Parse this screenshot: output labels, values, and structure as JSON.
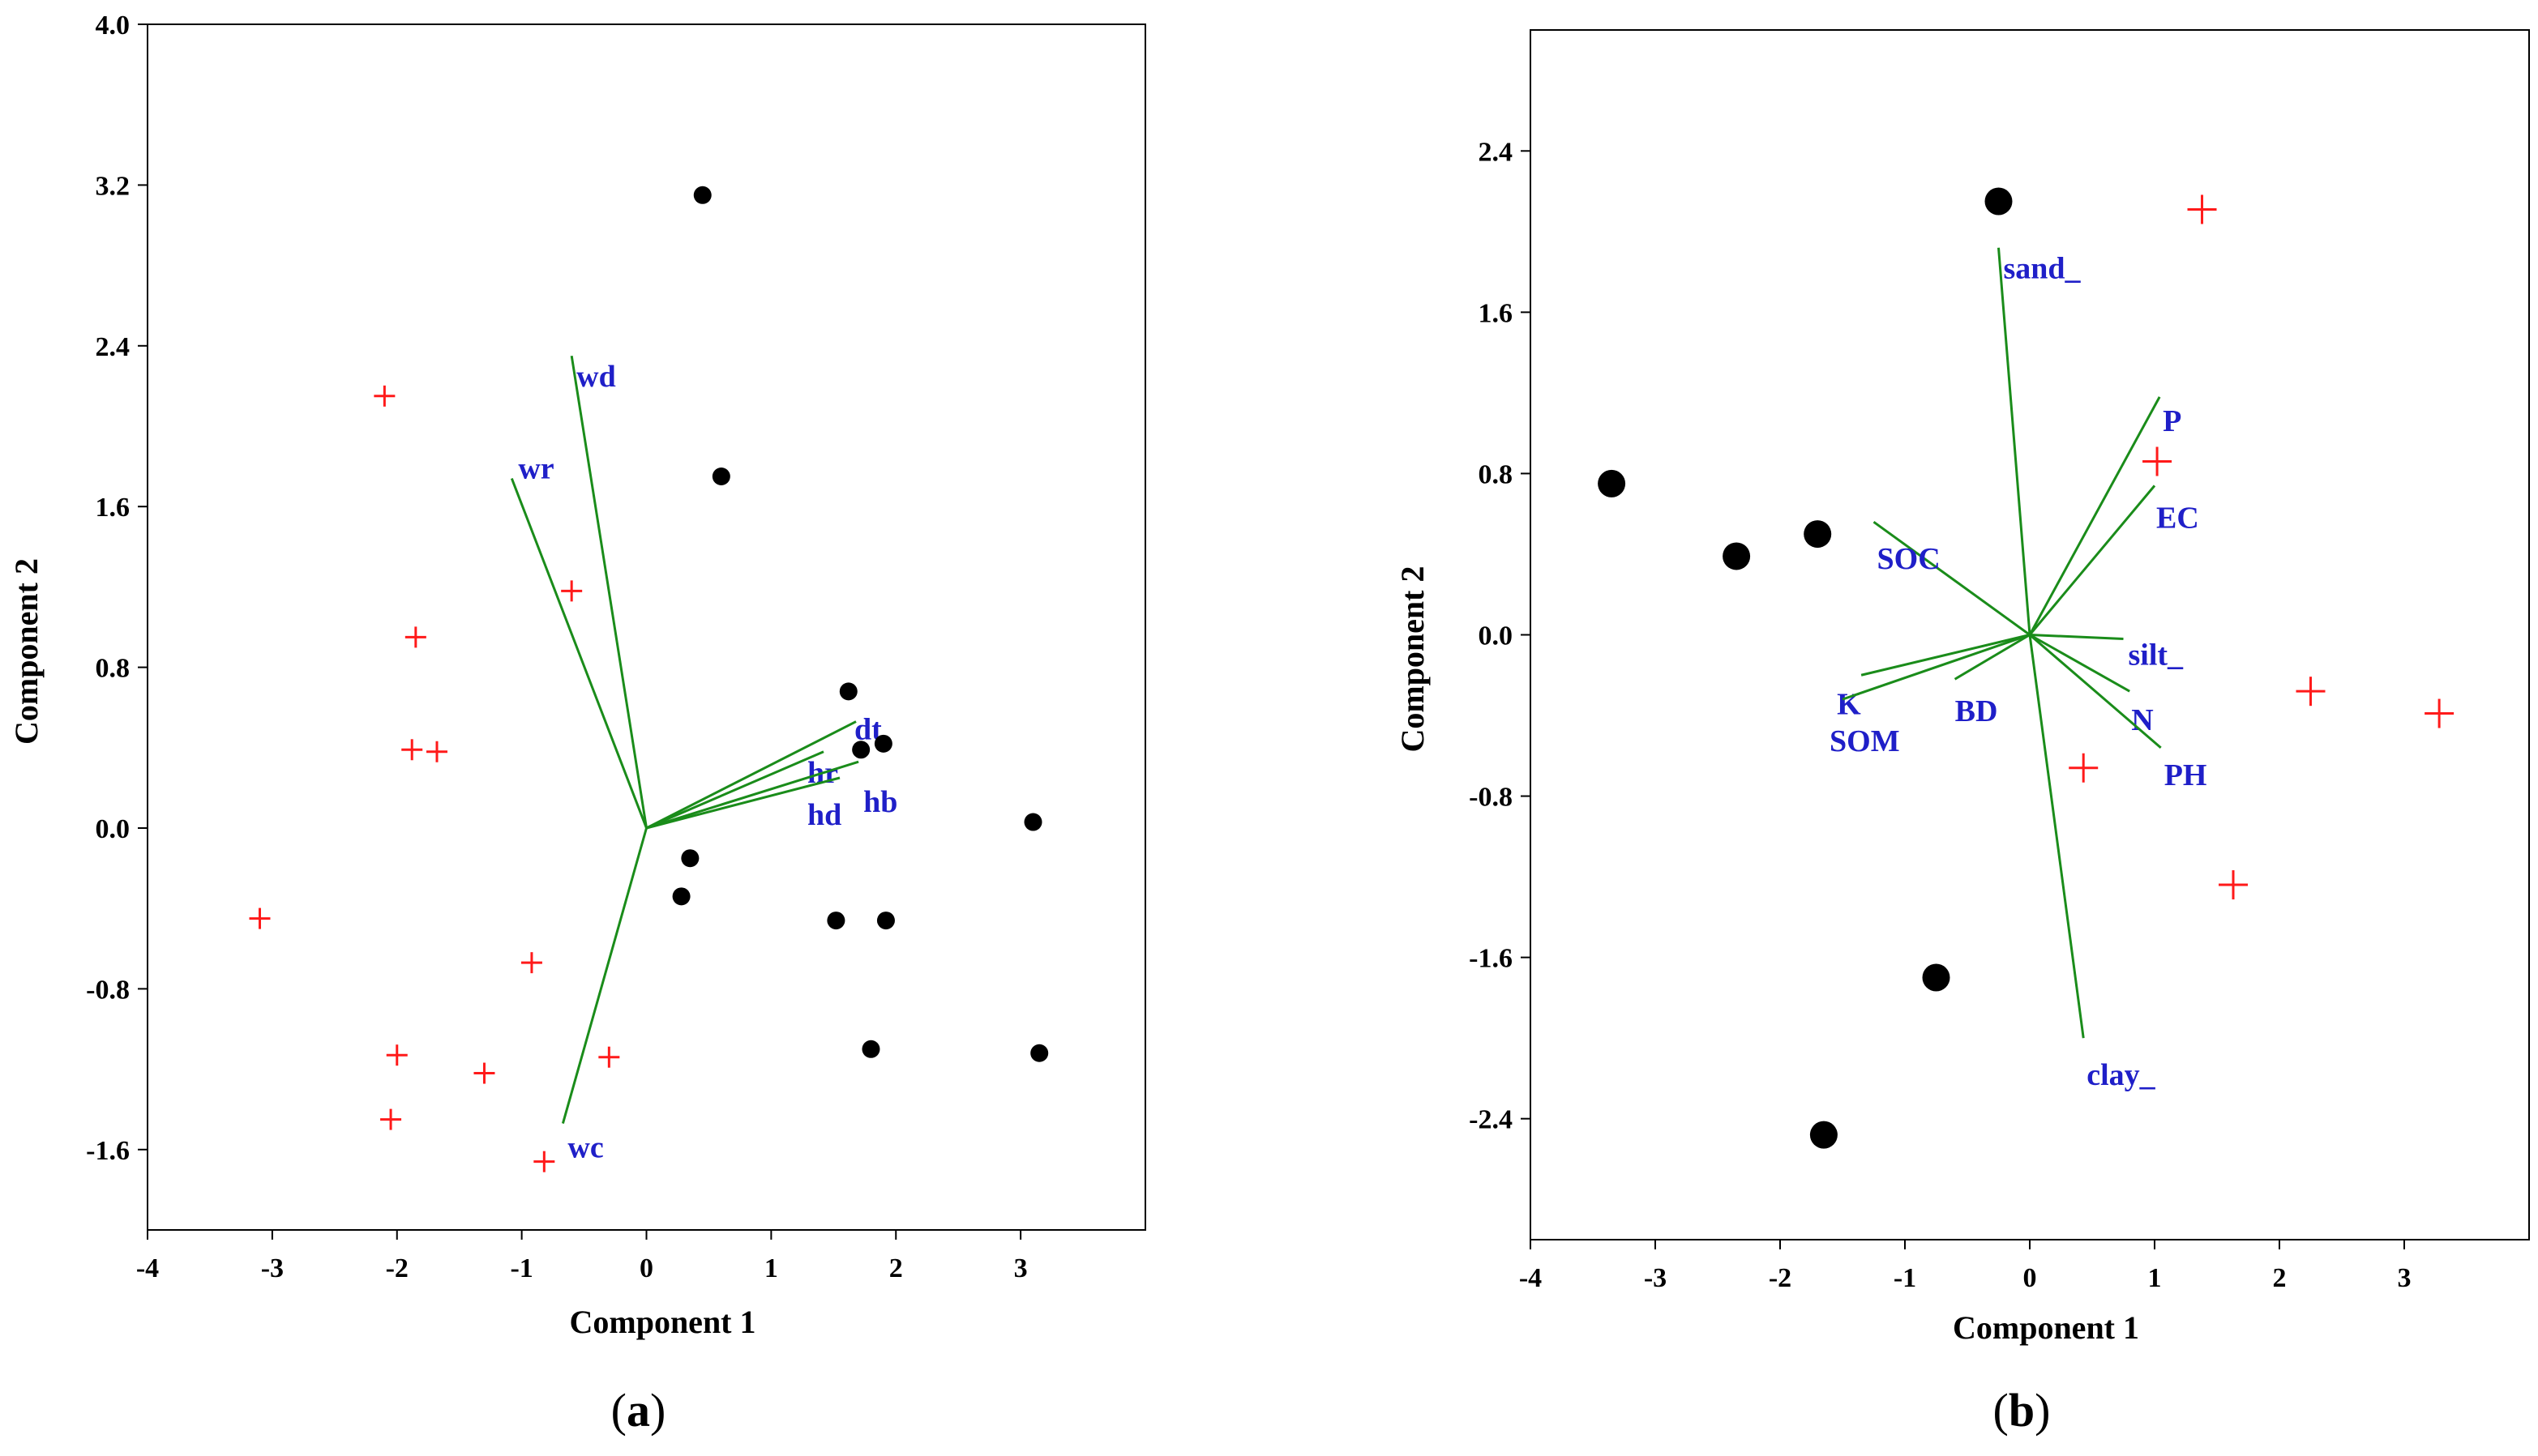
{
  "chart_data": [
    {
      "type": "scatter",
      "panel_label": "a",
      "xlabel": "Component 1",
      "ylabel": "Component 2",
      "xlim": [
        -4,
        4
      ],
      "ylim": [
        -2.0,
        4.0
      ],
      "xticks": [
        -4,
        -3,
        -2,
        -1,
        0,
        1,
        2,
        3
      ],
      "xtick_labels": [
        "-4",
        "-3",
        "-2",
        "-1",
        "0",
        "1",
        "2",
        "3"
      ],
      "yticks": [
        -1.6,
        -0.8,
        0.0,
        0.8,
        1.6,
        2.4,
        3.2,
        4.0
      ],
      "ytick_labels": [
        "-1.6",
        "-0.8",
        "0.0",
        "0.8",
        "1.6",
        "2.4",
        "3.2",
        "4.0"
      ],
      "groups": [
        {
          "name": "dots",
          "marker": "circle",
          "color": "#000000",
          "points": [
            [
              0.45,
              3.15
            ],
            [
              0.6,
              1.75
            ],
            [
              1.62,
              0.68
            ],
            [
              1.9,
              0.42
            ],
            [
              1.72,
              0.39
            ],
            [
              0.35,
              -0.15
            ],
            [
              0.28,
              -0.34
            ],
            [
              1.52,
              -0.46
            ],
            [
              1.92,
              -0.46
            ],
            [
              3.1,
              0.03
            ],
            [
              1.8,
              -1.1
            ],
            [
              3.15,
              -1.12
            ]
          ]
        },
        {
          "name": "crosses",
          "marker": "plus",
          "color": "#ff1a1a",
          "points": [
            [
              -2.1,
              2.15
            ],
            [
              -0.6,
              1.18
            ],
            [
              -1.85,
              0.95
            ],
            [
              -1.88,
              0.39
            ],
            [
              -1.68,
              0.38
            ],
            [
              -3.1,
              -0.45
            ],
            [
              -0.92,
              -0.67
            ],
            [
              -2.0,
              -1.13
            ],
            [
              -1.3,
              -1.22
            ],
            [
              -0.3,
              -1.14
            ],
            [
              -2.05,
              -1.45
            ],
            [
              -0.82,
              -1.66
            ]
          ]
        }
      ],
      "loadings": [
        {
          "name": "wd",
          "label": "wd",
          "x": -0.6,
          "y": 2.35
        },
        {
          "name": "wr",
          "label": "wr",
          "x": -1.08,
          "y": 1.74
        },
        {
          "name": "wc",
          "label": "wc",
          "x": -0.67,
          "y": -1.47
        },
        {
          "name": "dt",
          "label": "dt",
          "x": 1.68,
          "y": 0.53
        },
        {
          "name": "hr",
          "label": "hr",
          "x": 1.42,
          "y": 0.38
        },
        {
          "name": "hb",
          "label": "hb",
          "x": 1.7,
          "y": 0.33
        },
        {
          "name": "hd",
          "label": "hd",
          "x": 1.55,
          "y": 0.25
        }
      ]
    },
    {
      "type": "scatter",
      "panel_label": "b",
      "xlabel": "Component 1",
      "ylabel": "Component 2",
      "xlim": [
        -4,
        4
      ],
      "ylim": [
        -3.0,
        3.0
      ],
      "xticks": [
        -4,
        -3,
        -2,
        -1,
        0,
        1,
        2,
        3
      ],
      "xtick_labels": [
        "-4",
        "-3",
        "-2",
        "-1",
        "0",
        "1",
        "2",
        "3"
      ],
      "yticks": [
        -2.4,
        -1.6,
        -0.8,
        0.0,
        0.8,
        1.6,
        2.4
      ],
      "ytick_labels": [
        "-2.4",
        "-1.6",
        "-0.8",
        "0.0",
        "0.8",
        "1.6",
        "2.4"
      ],
      "groups": [
        {
          "name": "dots",
          "marker": "circle",
          "color": "#000000",
          "points": [
            [
              -0.25,
              2.15
            ],
            [
              -3.35,
              0.75
            ],
            [
              -2.35,
              0.39
            ],
            [
              -1.7,
              0.5
            ],
            [
              -0.75,
              -1.7
            ],
            [
              -1.65,
              -2.48
            ]
          ]
        },
        {
          "name": "crosses",
          "marker": "plus",
          "color": "#ff1a1a",
          "points": [
            [
              1.38,
              2.11
            ],
            [
              1.02,
              0.86
            ],
            [
              0.43,
              -0.66
            ],
            [
              2.25,
              -0.28
            ],
            [
              3.28,
              -0.39
            ],
            [
              1.63,
              -1.24
            ]
          ]
        }
      ],
      "loadings": [
        {
          "name": "sand",
          "label": "sand_",
          "x": -0.25,
          "y": 1.92
        },
        {
          "name": "clay",
          "label": "clay_",
          "x": 0.43,
          "y": -2.0
        },
        {
          "name": "p",
          "label": "P",
          "x": 1.04,
          "y": 1.18
        },
        {
          "name": "ec",
          "label": "EC",
          "x": 1.0,
          "y": 0.74
        },
        {
          "name": "soc",
          "label": "SOC",
          "x": -1.25,
          "y": 0.56
        },
        {
          "name": "silt",
          "label": "silt_",
          "x": 0.75,
          "y": -0.02
        },
        {
          "name": "n",
          "label": "N",
          "x": 0.8,
          "y": -0.28
        },
        {
          "name": "ph",
          "label": "PH",
          "x": 1.05,
          "y": -0.56
        },
        {
          "name": "bd",
          "label": "BD",
          "x": -0.6,
          "y": -0.22
        },
        {
          "name": "k",
          "label": "K",
          "x": -1.35,
          "y": -0.2
        },
        {
          "name": "som",
          "label": "SOM",
          "x": -1.5,
          "y": -0.32
        }
      ]
    }
  ]
}
